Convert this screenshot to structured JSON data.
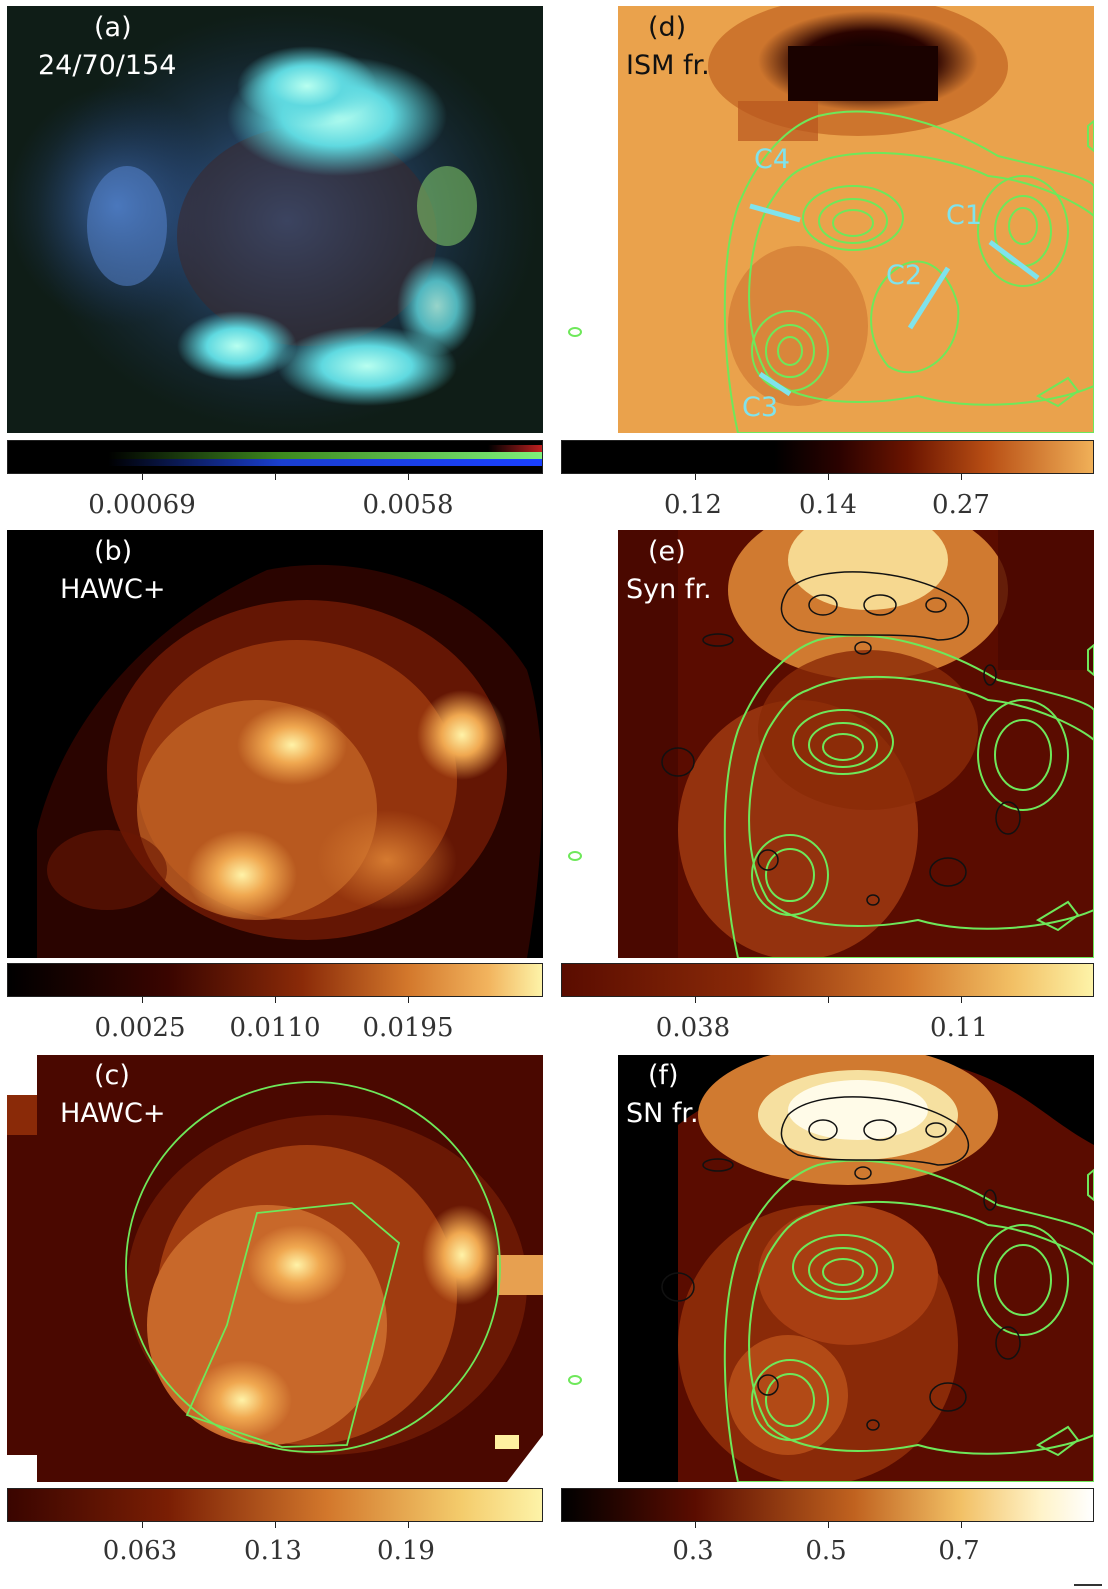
{
  "panels": {
    "a": {
      "label": "(a)",
      "sublabel": "24/70/154",
      "colorbar_ticks": [
        "0.00069",
        "0.0058"
      ]
    },
    "b": {
      "label": "(b)",
      "sublabel": "HAWC+",
      "colorbar_ticks": [
        "0.0025",
        "0.0110",
        "0.0195"
      ]
    },
    "c": {
      "label": "(c)",
      "sublabel": "HAWC+",
      "colorbar_ticks": [
        "0.063",
        "0.13",
        "0.19"
      ]
    },
    "d": {
      "label": "(d)",
      "sublabel": "ISM fr.",
      "colorbar_ticks": [
        "0.12",
        "0.14",
        "0.27"
      ],
      "region_labels": [
        "C1",
        "C2",
        "C3",
        "C4"
      ]
    },
    "e": {
      "label": "(e)",
      "sublabel": "Syn fr.",
      "colorbar_ticks": [
        "0.038",
        "0.11"
      ]
    },
    "f": {
      "label": "(f)",
      "sublabel": "SN fr.",
      "colorbar_ticks": [
        "0.3",
        "0.5",
        "0.7"
      ]
    }
  },
  "colors": {
    "contour_green": "#6ee85a",
    "region_cyan": "#7fe3ec",
    "contour_black": "#111111"
  }
}
